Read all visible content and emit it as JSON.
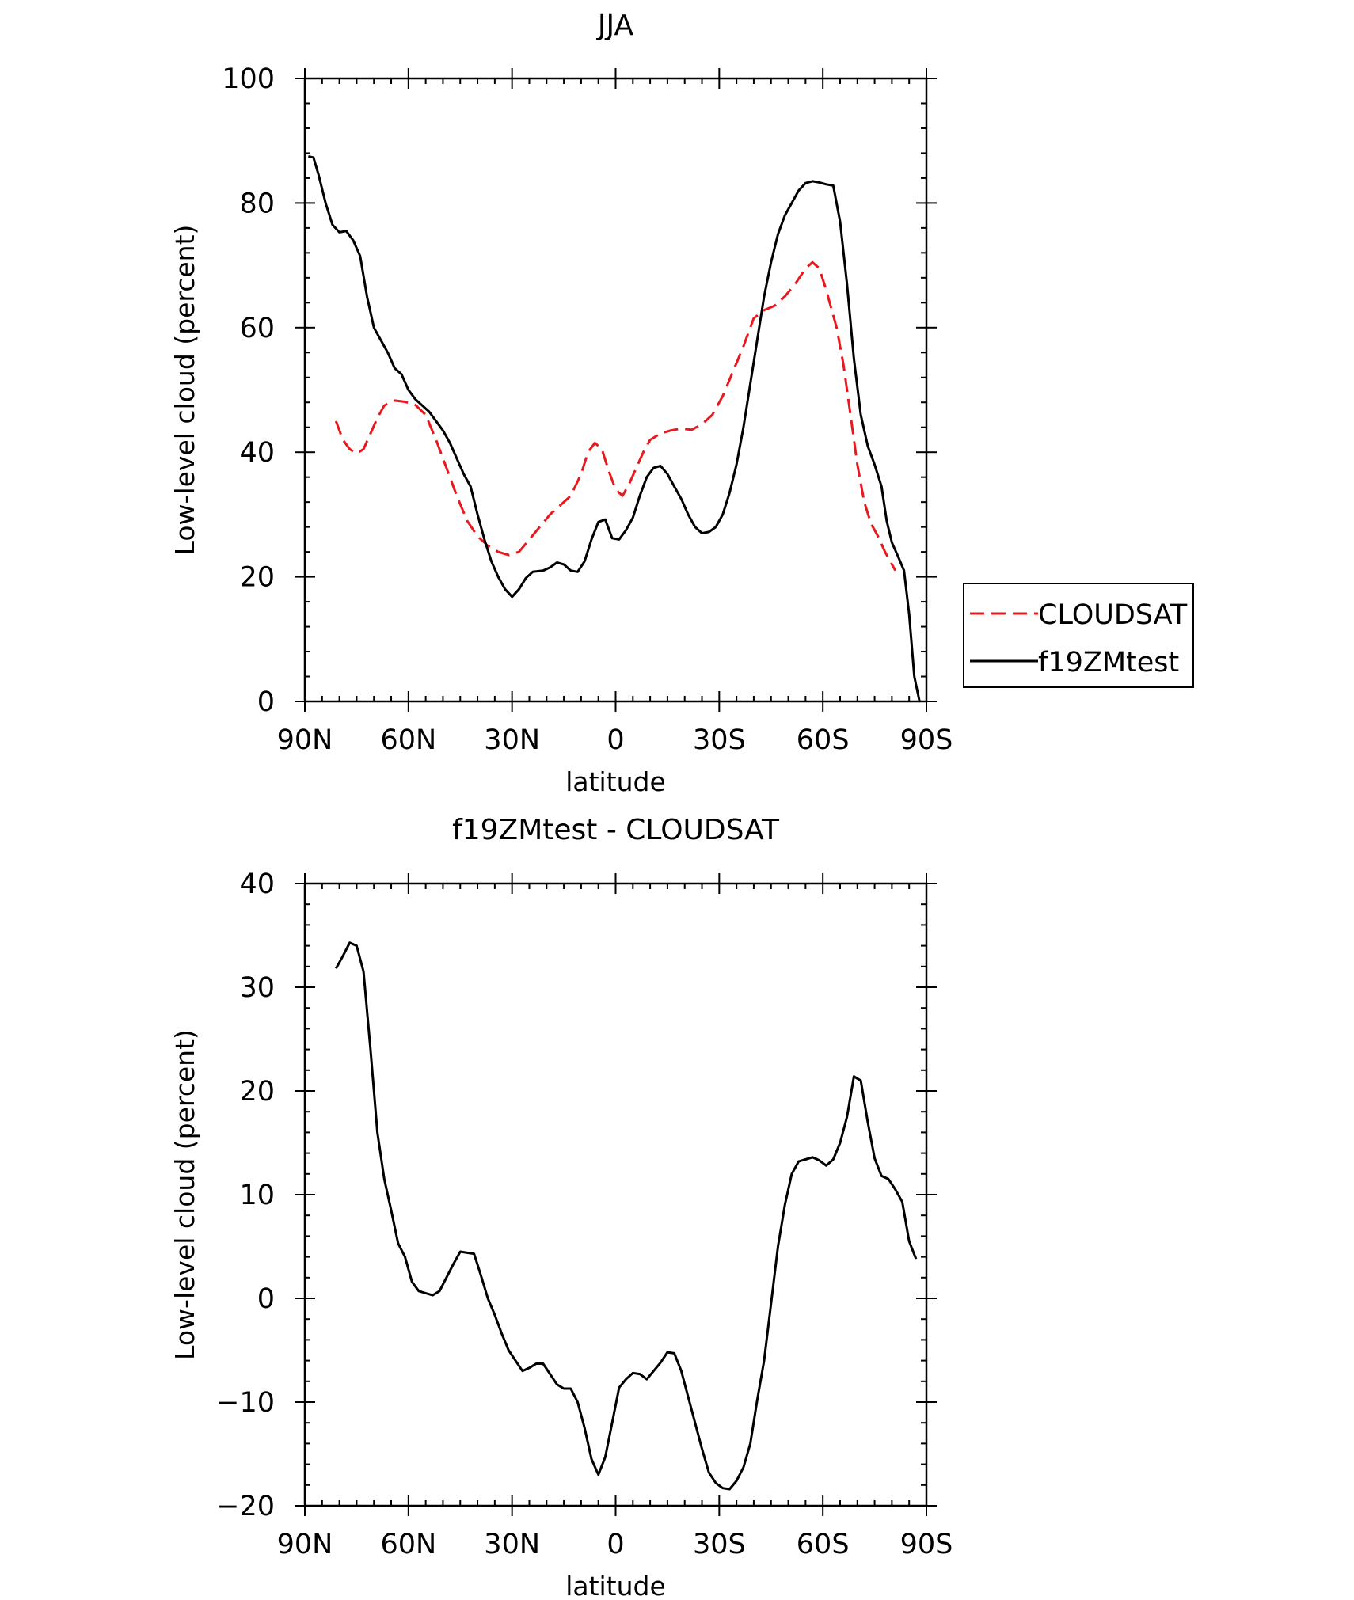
{
  "chart_data": [
    {
      "type": "line",
      "title": "JJA",
      "xlabel": "latitude",
      "ylabel": "Low-level cloud (percent)",
      "xlim": [
        90,
        -90
      ],
      "ylim": [
        0,
        100
      ],
      "xticks": [
        90,
        60,
        30,
        0,
        -30,
        -60,
        -90
      ],
      "xtick_labels": [
        "90N",
        "60N",
        "30N",
        "0",
        "30S",
        "60S",
        "90S"
      ],
      "yticks": [
        0,
        20,
        40,
        60,
        80,
        100
      ],
      "ytick_labels": [
        "0",
        "20",
        "40",
        "60",
        "80",
        "100"
      ],
      "legend_position": "right",
      "series": [
        {
          "name": "CLOUDSAT",
          "color": "#e8191e",
          "dash": "dashed",
          "points": [
            [
              81,
              45
            ],
            [
              79,
              42
            ],
            [
              77,
              40.5
            ],
            [
              75,
              39.8
            ],
            [
              73,
              40.5
            ],
            [
              71,
              43
            ],
            [
              69,
              45.5
            ],
            [
              67,
              47.5
            ],
            [
              64,
              48.3
            ],
            [
              61,
              48.1
            ],
            [
              58,
              47.6
            ],
            [
              55,
              46
            ],
            [
              52,
              42
            ],
            [
              49,
              37.5
            ],
            [
              46,
              33
            ],
            [
              43,
              29
            ],
            [
              40,
              26.5
            ],
            [
              37,
              25
            ],
            [
              34,
              24
            ],
            [
              31,
              23.5
            ],
            [
              28,
              24
            ],
            [
              25,
              26
            ],
            [
              22,
              28
            ],
            [
              19,
              30
            ],
            [
              16,
              31.5
            ],
            [
              13,
              33
            ],
            [
              10,
              36.5
            ],
            [
              8,
              40
            ],
            [
              6,
              41.5
            ],
            [
              4,
              40.5
            ],
            [
              2,
              37
            ],
            [
              0,
              34
            ],
            [
              -2,
              33
            ],
            [
              -4,
              35
            ],
            [
              -6,
              37.5
            ],
            [
              -8,
              40
            ],
            [
              -10,
              42
            ],
            [
              -13,
              43
            ],
            [
              -16,
              43.5
            ],
            [
              -19,
              43.8
            ],
            [
              -22,
              43.6
            ],
            [
              -25,
              44.5
            ],
            [
              -28,
              46
            ],
            [
              -31,
              49
            ],
            [
              -34,
              53
            ],
            [
              -37,
              57
            ],
            [
              -40,
              61.5
            ],
            [
              -43,
              62.8
            ],
            [
              -46,
              63.5
            ],
            [
              -49,
              65
            ],
            [
              -52,
              67
            ],
            [
              -55,
              69.5
            ],
            [
              -57,
              70.5
            ],
            [
              -59,
              69.5
            ],
            [
              -61,
              66
            ],
            [
              -64,
              60
            ],
            [
              -66,
              54
            ],
            [
              -68,
              46
            ],
            [
              -70,
              38
            ],
            [
              -72,
              32
            ],
            [
              -74,
              28.5
            ],
            [
              -76,
              26.5
            ],
            [
              -78,
              24
            ],
            [
              -80,
              22
            ],
            [
              -81,
              21
            ]
          ]
        },
        {
          "name": "f19ZMtest",
          "color": "#000000",
          "dash": "solid",
          "points": [
            [
              89,
              87.5
            ],
            [
              87.5,
              87.3
            ],
            [
              86,
              84.5
            ],
            [
              84,
              80
            ],
            [
              82,
              76.5
            ],
            [
              80,
              75.3
            ],
            [
              78,
              75.5
            ],
            [
              76,
              74
            ],
            [
              74,
              71.5
            ],
            [
              72,
              65
            ],
            [
              70,
              60
            ],
            [
              68,
              58
            ],
            [
              66,
              56
            ],
            [
              64,
              53.5
            ],
            [
              62,
              52.5
            ],
            [
              60,
              50
            ],
            [
              58,
              48.5
            ],
            [
              56,
              47.5
            ],
            [
              54,
              46.5
            ],
            [
              52,
              45
            ],
            [
              50,
              43.5
            ],
            [
              48,
              41.5
            ],
            [
              46,
              39
            ],
            [
              44,
              36.5
            ],
            [
              42,
              34.5
            ],
            [
              40,
              30
            ],
            [
              38,
              26
            ],
            [
              36,
              22.5
            ],
            [
              34,
              20
            ],
            [
              32,
              18
            ],
            [
              30,
              16.8
            ],
            [
              28,
              18
            ],
            [
              26,
              19.8
            ],
            [
              24,
              20.8
            ],
            [
              21,
              21
            ],
            [
              19,
              21.5
            ],
            [
              17,
              22.3
            ],
            [
              15,
              22
            ],
            [
              13,
              21
            ],
            [
              11,
              20.8
            ],
            [
              9,
              22.5
            ],
            [
              7,
              26
            ],
            [
              5,
              28.8
            ],
            [
              3,
              29.2
            ],
            [
              1,
              26.2
            ],
            [
              -1,
              26
            ],
            [
              -3,
              27.5
            ],
            [
              -5,
              29.5
            ],
            [
              -7,
              33
            ],
            [
              -9,
              36
            ],
            [
              -11,
              37.5
            ],
            [
              -13,
              37.8
            ],
            [
              -15,
              36.5
            ],
            [
              -17,
              34.5
            ],
            [
              -19,
              32.5
            ],
            [
              -21,
              30
            ],
            [
              -23,
              28
            ],
            [
              -25,
              27
            ],
            [
              -27,
              27.2
            ],
            [
              -29,
              28
            ],
            [
              -31,
              30
            ],
            [
              -33,
              33.5
            ],
            [
              -35,
              38
            ],
            [
              -37,
              44
            ],
            [
              -39,
              51
            ],
            [
              -41,
              58
            ],
            [
              -43,
              65
            ],
            [
              -45,
              70.5
            ],
            [
              -47,
              75
            ],
            [
              -49,
              78
            ],
            [
              -51,
              80
            ],
            [
              -53,
              82
            ],
            [
              -55,
              83.2
            ],
            [
              -57,
              83.5
            ],
            [
              -59,
              83.3
            ],
            [
              -61,
              83
            ],
            [
              -63,
              82.8
            ],
            [
              -65,
              77
            ],
            [
              -67,
              67
            ],
            [
              -69,
              55
            ],
            [
              -71,
              46
            ],
            [
              -73,
              41
            ],
            [
              -75,
              38
            ],
            [
              -77,
              34.5
            ],
            [
              -78.5,
              29
            ],
            [
              -80,
              25.5
            ],
            [
              -82,
              23
            ],
            [
              -83.5,
              21
            ],
            [
              -85,
              14
            ],
            [
              -86.5,
              4
            ],
            [
              -88,
              0
            ]
          ]
        }
      ]
    },
    {
      "type": "line",
      "title": "f19ZMtest - CLOUDSAT",
      "xlabel": "latitude",
      "ylabel": "Low-level cloud (percent)",
      "xlim": [
        90,
        -90
      ],
      "ylim": [
        -20,
        40
      ],
      "xticks": [
        90,
        60,
        30,
        0,
        -30,
        -60,
        -90
      ],
      "xtick_labels": [
        "90N",
        "60N",
        "30N",
        "0",
        "30S",
        "60S",
        "90S"
      ],
      "yticks": [
        -20,
        -10,
        0,
        10,
        20,
        30,
        40
      ],
      "ytick_labels": [
        "−20",
        "−10",
        "0",
        "10",
        "20",
        "30",
        "40"
      ],
      "series": [
        {
          "name": "",
          "color": "#000000",
          "dash": "solid",
          "points": [
            [
              81,
              31.8
            ],
            [
              79,
              33
            ],
            [
              77,
              34.3
            ],
            [
              75,
              34
            ],
            [
              73,
              31.5
            ],
            [
              71,
              24
            ],
            [
              69,
              16
            ],
            [
              67,
              11.5
            ],
            [
              65,
              8.5
            ],
            [
              63,
              5.3
            ],
            [
              61,
              4
            ],
            [
              59,
              1.6
            ],
            [
              57,
              0.7
            ],
            [
              55,
              0.5
            ],
            [
              53,
              0.3
            ],
            [
              51,
              0.7
            ],
            [
              49,
              2
            ],
            [
              47,
              3.3
            ],
            [
              45,
              4.5
            ],
            [
              43,
              4.4
            ],
            [
              41,
              4.3
            ],
            [
              39,
              2.2
            ],
            [
              37,
              0
            ],
            [
              35,
              -1.6
            ],
            [
              33,
              -3.4
            ],
            [
              31,
              -5
            ],
            [
              29,
              -6
            ],
            [
              27,
              -7
            ],
            [
              25,
              -6.7
            ],
            [
              23,
              -6.3
            ],
            [
              21,
              -6.3
            ],
            [
              19,
              -7.3
            ],
            [
              17,
              -8.3
            ],
            [
              15,
              -8.7
            ],
            [
              13,
              -8.7
            ],
            [
              11,
              -10
            ],
            [
              9,
              -12.5
            ],
            [
              7,
              -15.5
            ],
            [
              5,
              -17
            ],
            [
              3,
              -15.3
            ],
            [
              1,
              -12
            ],
            [
              -1,
              -8.6
            ],
            [
              -3,
              -7.8
            ],
            [
              -5,
              -7.2
            ],
            [
              -7,
              -7.3
            ],
            [
              -9,
              -7.8
            ],
            [
              -11,
              -7
            ],
            [
              -13,
              -6.2
            ],
            [
              -15,
              -5.2
            ],
            [
              -17,
              -5.3
            ],
            [
              -19,
              -7
            ],
            [
              -21,
              -9.5
            ],
            [
              -23,
              -12
            ],
            [
              -25,
              -14.5
            ],
            [
              -27,
              -16.8
            ],
            [
              -29,
              -17.8
            ],
            [
              -31,
              -18.3
            ],
            [
              -33,
              -18.4
            ],
            [
              -35,
              -17.6
            ],
            [
              -37,
              -16.3
            ],
            [
              -39,
              -14
            ],
            [
              -41,
              -9.8
            ],
            [
              -43,
              -6
            ],
            [
              -45,
              -0.5
            ],
            [
              -47,
              5
            ],
            [
              -49,
              9
            ],
            [
              -51,
              12
            ],
            [
              -53,
              13.2
            ],
            [
              -55,
              13.4
            ],
            [
              -57,
              13.6
            ],
            [
              -59,
              13.3
            ],
            [
              -61,
              12.8
            ],
            [
              -63,
              13.4
            ],
            [
              -65,
              15
            ],
            [
              -67,
              17.5
            ],
            [
              -69,
              21.4
            ],
            [
              -71,
              21
            ],
            [
              -73,
              17
            ],
            [
              -75,
              13.5
            ],
            [
              -77,
              11.8
            ],
            [
              -79,
              11.5
            ],
            [
              -81,
              10.5
            ],
            [
              -83,
              9.3
            ],
            [
              -85,
              5.5
            ],
            [
              -87,
              3.8
            ]
          ]
        }
      ]
    }
  ]
}
